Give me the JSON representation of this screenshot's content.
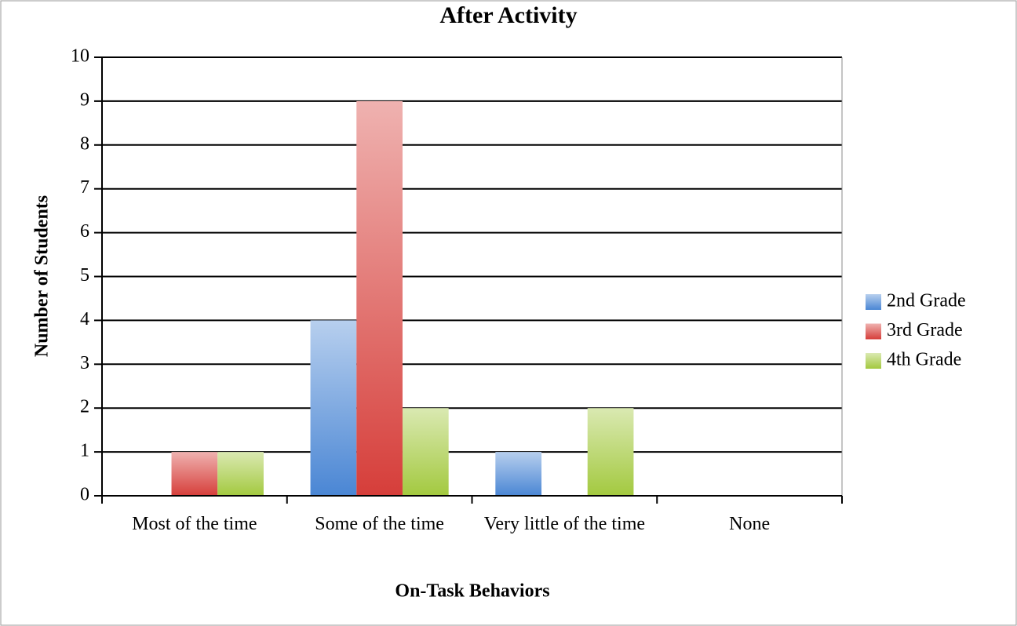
{
  "chart_data": {
    "type": "bar",
    "title": "After Activity",
    "x_label": "On-Task Behaviors",
    "y_label": "Number of Students",
    "categories": [
      "Most of the time",
      "Some of the time",
      "Very little of the time",
      "None"
    ],
    "series": [
      {
        "name": "2nd Grade",
        "color": "#4a86d4",
        "values": [
          0,
          4,
          1,
          0
        ]
      },
      {
        "name": "3rd Grade",
        "color": "#d63e3a",
        "values": [
          1,
          9,
          0,
          0
        ]
      },
      {
        "name": "4th Grade",
        "color": "#a3c93f",
        "values": [
          1,
          2,
          2,
          0
        ]
      }
    ],
    "ylim": [
      0,
      10
    ],
    "yticks": [
      0,
      1,
      2,
      3,
      4,
      5,
      6,
      7,
      8,
      9,
      10
    ],
    "grid": true,
    "legend": "right"
  }
}
